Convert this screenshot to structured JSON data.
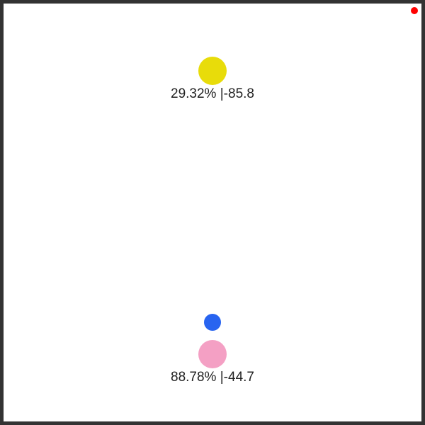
{
  "canvas": {
    "border_color": "#333333",
    "background_color": "#ffffff"
  },
  "indicator": {
    "color": "#ff0000"
  },
  "targets": [
    {
      "label": "29.32% |-85.8",
      "color": "#e8dc0a"
    },
    {
      "label": "88.78% |-44.7",
      "color": "#f4a0c4"
    }
  ],
  "cursor_dot": {
    "color": "#2864f0"
  }
}
